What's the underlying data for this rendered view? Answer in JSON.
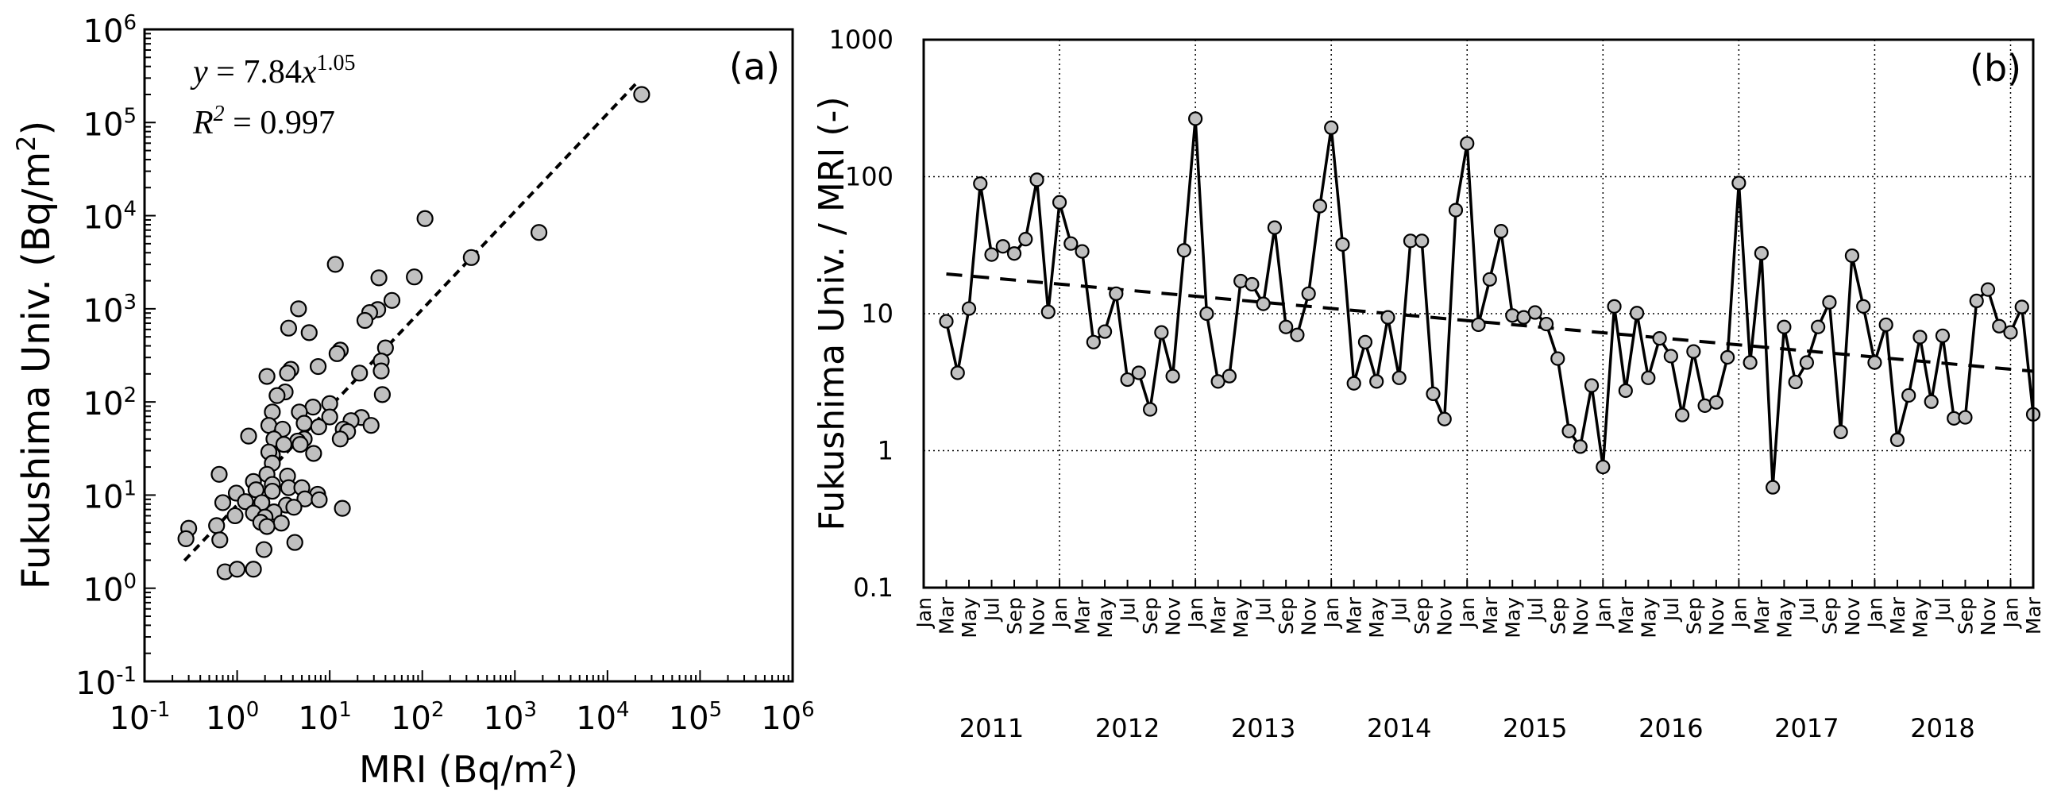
{
  "chart_data": [
    {
      "type": "scatter",
      "panel_label": "(a)",
      "xlabel": {
        "text": "MRI (Bq/m",
        "sup": "2",
        "tail": ")"
      },
      "ylabel": {
        "text": "Fukushima Univ. (Bq/m",
        "sup": "2",
        "tail": ")"
      },
      "xscale": "log",
      "yscale": "log",
      "xlim": [
        0.1,
        1000000
      ],
      "ylim": [
        0.1,
        1000000
      ],
      "x_tick_labels": [
        {
          "base": "10",
          "exp": "-1"
        },
        {
          "base": "10",
          "exp": "0"
        },
        {
          "base": "10",
          "exp": "1"
        },
        {
          "base": "10",
          "exp": "2"
        },
        {
          "base": "10",
          "exp": "3"
        },
        {
          "base": "10",
          "exp": "4"
        },
        {
          "base": "10",
          "exp": "5"
        },
        {
          "base": "10",
          "exp": "6"
        }
      ],
      "y_tick_labels": [
        {
          "base": "10",
          "exp": "-1"
        },
        {
          "base": "10",
          "exp": "0"
        },
        {
          "base": "10",
          "exp": "1"
        },
        {
          "base": "10",
          "exp": "2"
        },
        {
          "base": "10",
          "exp": "3"
        },
        {
          "base": "10",
          "exp": "4"
        },
        {
          "base": "10",
          "exp": "5"
        },
        {
          "base": "10",
          "exp": "6"
        }
      ],
      "equation": {
        "y": "y",
        "eq": " = 7.84",
        "x": "x",
        "exp": "1.05"
      },
      "r2": {
        "r": "R",
        "sup": "2",
        "eq": " = 0.997"
      },
      "fit": {
        "a": 7.84,
        "b": 1.05,
        "x_range": [
          0.27,
          21000
        ],
        "style": "dashed"
      },
      "marker_color": "#c0c0c0",
      "points": [
        [
          23400,
          200000
        ],
        [
          107,
          9300
        ],
        [
          1820,
          6600
        ],
        [
          338,
          3550
        ],
        [
          11.5,
          3000
        ],
        [
          34,
          2150
        ],
        [
          82,
          2200
        ],
        [
          4.6,
          1000
        ],
        [
          33,
          980
        ],
        [
          27,
          910
        ],
        [
          47,
          1230
        ],
        [
          24,
          750
        ],
        [
          3.6,
          620
        ],
        [
          6,
          555
        ],
        [
          13,
          360
        ],
        [
          12,
          330
        ],
        [
          40,
          380
        ],
        [
          36,
          275
        ],
        [
          36,
          215
        ],
        [
          7.5,
          240
        ],
        [
          3.8,
          224
        ],
        [
          3.5,
          204
        ],
        [
          21,
          204
        ],
        [
          2.1,
          188
        ],
        [
          3.3,
          128
        ],
        [
          2.7,
          117
        ],
        [
          37,
          120
        ],
        [
          10,
          96
        ],
        [
          6.6,
          88
        ],
        [
          4.7,
          78
        ],
        [
          2.4,
          78
        ],
        [
          10,
          69
        ],
        [
          22,
          68
        ],
        [
          17,
          63
        ],
        [
          5.3,
          59
        ],
        [
          2.2,
          56
        ],
        [
          7.6,
          54
        ],
        [
          28,
          56
        ],
        [
          3.1,
          51
        ],
        [
          14,
          51
        ],
        [
          15.6,
          48
        ],
        [
          1.33,
          43
        ],
        [
          2.5,
          40
        ],
        [
          13,
          40
        ],
        [
          5.3,
          40
        ],
        [
          4.5,
          38
        ],
        [
          3.2,
          35
        ],
        [
          4.8,
          35
        ],
        [
          6.7,
          28
        ],
        [
          2.4,
          27
        ],
        [
          2.2,
          29
        ],
        [
          2.4,
          22
        ],
        [
          3.5,
          16
        ],
        [
          2.1,
          16.7
        ],
        [
          0.64,
          16.7
        ],
        [
          1.5,
          14
        ],
        [
          2.4,
          13
        ],
        [
          3.6,
          12
        ],
        [
          5.0,
          12
        ],
        [
          1.6,
          11.4
        ],
        [
          2.4,
          11
        ],
        [
          0.98,
          10.5
        ],
        [
          7.4,
          10.2
        ],
        [
          5.4,
          9.1
        ],
        [
          7.7,
          8.9
        ],
        [
          1.23,
          8.5
        ],
        [
          1.85,
          8.3
        ],
        [
          0.7,
          8.3
        ],
        [
          3.4,
          7.8
        ],
        [
          4.1,
          7.4
        ],
        [
          13.7,
          7.2
        ],
        [
          1.5,
          6.4
        ],
        [
          2.5,
          6.6
        ],
        [
          0.95,
          6.0
        ],
        [
          2.0,
          5.8
        ],
        [
          1.8,
          5.1
        ],
        [
          3.0,
          5.0
        ],
        [
          2.1,
          4.6
        ],
        [
          0.6,
          4.7
        ],
        [
          0.3,
          4.4
        ],
        [
          0.28,
          3.4
        ],
        [
          0.65,
          3.3
        ],
        [
          4.2,
          3.1
        ],
        [
          1.95,
          2.6
        ],
        [
          0.74,
          1.5
        ],
        [
          1.0,
          1.6
        ],
        [
          1.5,
          1.6
        ]
      ]
    },
    {
      "type": "line",
      "panel_label": "(b)",
      "ylabel": "Fukushima Univ. / MRI (-)",
      "yscale": "log",
      "ylim": [
        0.1,
        1000
      ],
      "y_tick_labels": [
        "0.1",
        "1",
        "10",
        "100",
        "1000"
      ],
      "y_tick_values": [
        0.1,
        1,
        10,
        100,
        1000
      ],
      "x_range_months": [
        "2011-01",
        "2019-03"
      ],
      "month_tick_labels": [
        "Jan",
        "Mar",
        "May",
        "Jul",
        "Sep",
        "Nov"
      ],
      "final_month_tick_labels": [
        "Jan",
        "Mar"
      ],
      "year_labels": [
        "2011",
        "2012",
        "2013",
        "2014",
        "2015",
        "2016",
        "2017",
        "2018"
      ],
      "series_start": "2011-03",
      "marker_color": "#c0c0c0",
      "values": [
        8.8,
        3.7,
        10.9,
        89,
        27,
        31,
        27.5,
        35,
        95,
        10.3,
        65,
        32.5,
        28.5,
        6.2,
        7.4,
        14,
        3.3,
        3.7,
        2.0,
        7.3,
        3.5,
        29,
        265,
        10,
        3.2,
        3.5,
        17.3,
        16.4,
        11.8,
        42.5,
        8.0,
        7.0,
        14,
        61,
        228,
        32,
        3.1,
        6.2,
        3.2,
        9.4,
        3.4,
        34,
        34,
        2.6,
        1.7,
        57,
        175,
        8.3,
        17.8,
        40,
        9.7,
        9.4,
        10.2,
        8.4,
        4.7,
        1.39,
        1.07,
        2.99,
        0.76,
        11.3,
        2.74,
        10.1,
        3.4,
        6.6,
        4.9,
        1.82,
        5.3,
        2.13,
        2.25,
        4.8,
        90,
        4.4,
        27.6,
        0.54,
        8.0,
        3.17,
        4.4,
        8.0,
        12.1,
        1.37,
        26.5,
        11.3,
        4.4,
        8.3,
        1.2,
        2.53,
        6.75,
        2.28,
        6.9,
        1.72,
        1.75,
        12.4,
        15,
        8.1,
        7.3,
        11.2,
        1.84
      ],
      "trend": {
        "start_value": 19.5,
        "end_value": 3.8,
        "style": "dashed"
      },
      "grid": "dotted, major decades and January of each year"
    }
  ]
}
